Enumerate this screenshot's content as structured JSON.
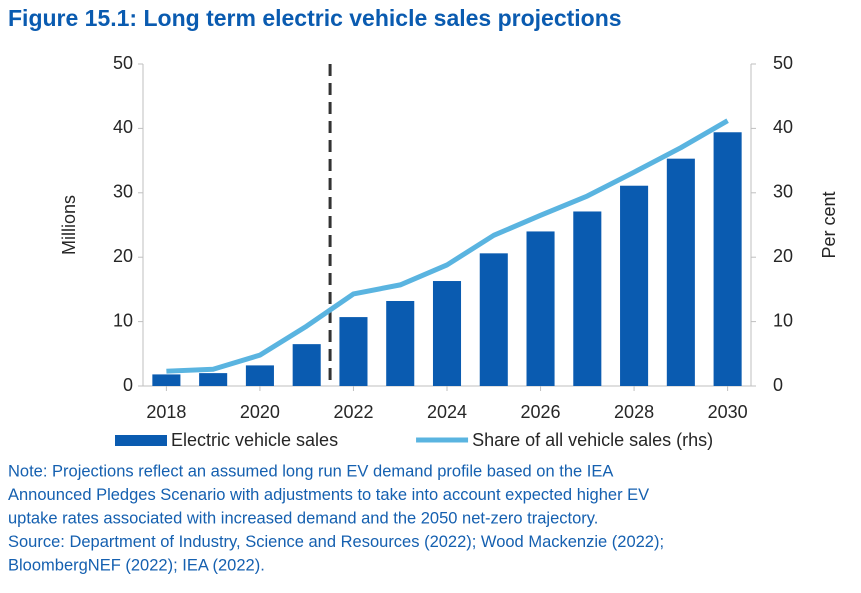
{
  "chart_data": {
    "type": "bar",
    "title": "Figure 15.1: Long term electric vehicle sales projections",
    "y_label": "Millions",
    "y2_label": "Per cent",
    "x": [
      2018,
      2019,
      2020,
      2021,
      2022,
      2023,
      2024,
      2025,
      2026,
      2027,
      2028,
      2029,
      2030
    ],
    "xlim": [
      2017.5,
      2030.5
    ],
    "xticks": [
      2018,
      2020,
      2022,
      2024,
      2026,
      2028,
      2030
    ],
    "ylim": [
      0,
      50
    ],
    "yticks": [
      0,
      10,
      20,
      30,
      40,
      50
    ],
    "y2lim": [
      0,
      50
    ],
    "y2ticks": [
      0,
      10,
      20,
      30,
      40,
      50
    ],
    "vlines": [
      2021.5
    ],
    "series": [
      {
        "name": "Electric vehicle sales",
        "type": "bar",
        "color": "#0a5bb0",
        "values": [
          1.8,
          2.0,
          3.2,
          6.5,
          10.7,
          13.2,
          16.3,
          20.6,
          24.0,
          27.1,
          31.1,
          35.3,
          39.4
        ]
      },
      {
        "name": "Share of all vehicle sales (rhs)",
        "type": "line",
        "axis": "y2",
        "color": "#5ab4e0",
        "values": [
          2.3,
          2.6,
          4.8,
          9.3,
          14.3,
          15.7,
          18.8,
          23.4,
          26.5,
          29.5,
          33.2,
          37.0,
          41.2
        ]
      }
    ],
    "notes": [
      "Note: Projections reflect an assumed long run EV demand profile based on the IEA",
      "Announced Pledges Scenario with adjustments to take into account expected higher EV",
      "uptake rates associated with increased demand and the 2050 net-zero trajectory.",
      "Source: Department of Industry, Science and Resources (2022); Wood Mackenzie (2022);",
      "BloombergNEF (2022); IEA (2022)."
    ]
  }
}
